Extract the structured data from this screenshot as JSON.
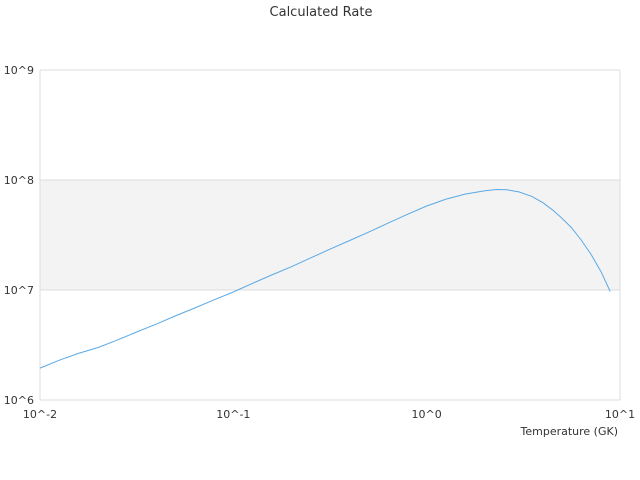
{
  "chart_data": {
    "type": "line",
    "title": "Calculated Rate",
    "xlabel": "Temperature (GK)",
    "ylabel": "",
    "x_scale": "log",
    "y_scale": "log",
    "xlim": [
      0.01,
      10
    ],
    "ylim": [
      1000000,
      1000000000
    ],
    "x_ticks": [
      {
        "value": 0.01,
        "label": "10^-2"
      },
      {
        "value": 0.1,
        "label": "10^-1"
      },
      {
        "value": 1,
        "label": "10^0"
      },
      {
        "value": 10,
        "label": "10^1"
      }
    ],
    "y_ticks": [
      {
        "value": 1000000,
        "label": "10^6"
      },
      {
        "value": 10000000,
        "label": "10^7"
      },
      {
        "value": 100000000,
        "label": "10^8"
      },
      {
        "value": 1000000000,
        "label": "10^9"
      }
    ],
    "grid": true,
    "legend": "none",
    "colors": {
      "line": "#5aa9e6",
      "band": "#f3f3f3",
      "grid": "#dddddd"
    },
    "series": [
      {
        "x": [
          0.01,
          0.0126,
          0.0158,
          0.02,
          0.025,
          0.0316,
          0.04,
          0.05,
          0.063,
          0.079,
          0.1,
          0.126,
          0.158,
          0.2,
          0.25,
          0.316,
          0.4,
          0.5,
          0.63,
          0.79,
          1.0,
          1.26,
          1.58,
          2.0,
          2.3,
          2.6,
          3.0,
          3.5,
          4.0,
          4.5,
          5.0,
          5.6,
          6.3,
          7.1,
          8.0,
          8.9
        ],
        "y": [
          1950000,
          2300000,
          2650000,
          3000000,
          3500000,
          4150000,
          4900000,
          5800000,
          6850000,
          8100000,
          9600000,
          11500000,
          13700000,
          16300000,
          19500000,
          23500000,
          28200000,
          33500000,
          40500000,
          48500000,
          58000000,
          67000000,
          74500000,
          80000000,
          82000000,
          81500000,
          78000000,
          71000000,
          62000000,
          53000000,
          45000000,
          37000000,
          28500000,
          21000000,
          14500000,
          9700000
        ]
      }
    ]
  }
}
